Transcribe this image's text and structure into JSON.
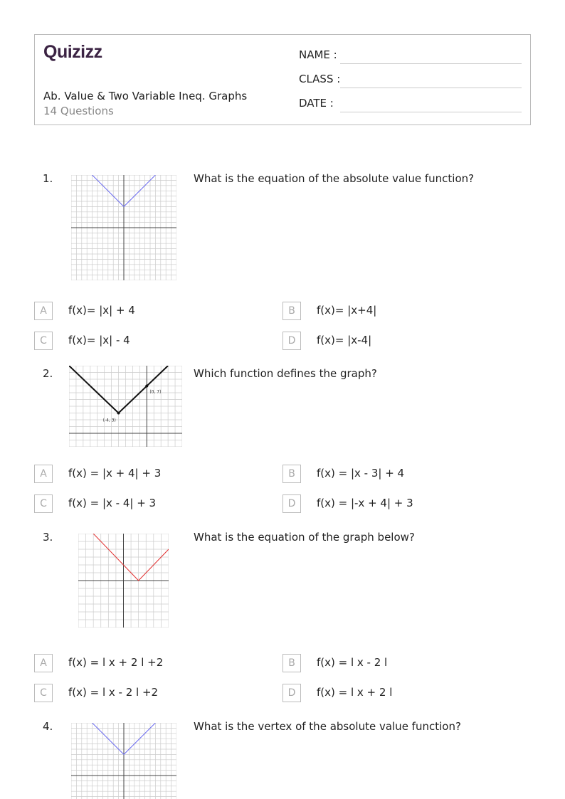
{
  "header": {
    "logo": "Quizizz",
    "title": "Ab. Value & Two Variable Ineq. Graphs",
    "count": "14 Questions",
    "fields": [
      "NAME :",
      "CLASS :",
      "DATE  :"
    ]
  },
  "questions": [
    {
      "number": "1.",
      "text": "What is the equation of the absolute value function?",
      "graph": {
        "xlim": [
          -10,
          10
        ],
        "ylim": [
          -10,
          10
        ],
        "vertex": [
          0,
          4
        ],
        "slope": 1,
        "color": "#6b6bf0",
        "labels": []
      },
      "options": [
        {
          "letter": "A",
          "text": "f(x)= |x| + 4"
        },
        {
          "letter": "B",
          "text": "f(x)= |x+4|"
        },
        {
          "letter": "C",
          "text": "f(x)= |x| - 4"
        },
        {
          "letter": "D",
          "text": "f(x)= |x-4|"
        }
      ]
    },
    {
      "number": "2.",
      "text": "Which function defines the graph?",
      "graph": {
        "xlim": [
          -11,
          5
        ],
        "ylim": [
          -2,
          10
        ],
        "vertex": [
          -4,
          3
        ],
        "slope": 1,
        "color": "#111111",
        "labels": [
          "(-4, 3)",
          "(0, 7)"
        ]
      },
      "options": [
        {
          "letter": "A",
          "text": "f(x) = |x + 4| + 3"
        },
        {
          "letter": "B",
          "text": "f(x) = |x - 3| + 4"
        },
        {
          "letter": "C",
          "text": "f(x) = |x - 4| + 3"
        },
        {
          "letter": "D",
          "text": "f(x) = |-x + 4| + 3"
        }
      ]
    },
    {
      "number": "3.",
      "text": "What is the equation of the graph below?",
      "graph": {
        "xlim": [
          -6,
          6
        ],
        "ylim": [
          -6,
          6
        ],
        "vertex": [
          2,
          0
        ],
        "slope": 1,
        "color": "#e03030",
        "labels": []
      },
      "options": [
        {
          "letter": "A",
          "text": "f(x) = l x + 2 l +2"
        },
        {
          "letter": "B",
          "text": "f(x) = l x - 2 l"
        },
        {
          "letter": "C",
          "text": "f(x) = l x - 2 l +2"
        },
        {
          "letter": "D",
          "text": "f(x) = l x + 2 l"
        }
      ]
    },
    {
      "number": "4.",
      "text": "What is the vertex of the absolute value function?",
      "graph": {
        "xlim": [
          -10,
          10
        ],
        "ylim": [
          -10,
          10
        ],
        "vertex": [
          0,
          4
        ],
        "slope": 1,
        "color": "#6b6bf0",
        "labels": []
      },
      "options": []
    }
  ]
}
